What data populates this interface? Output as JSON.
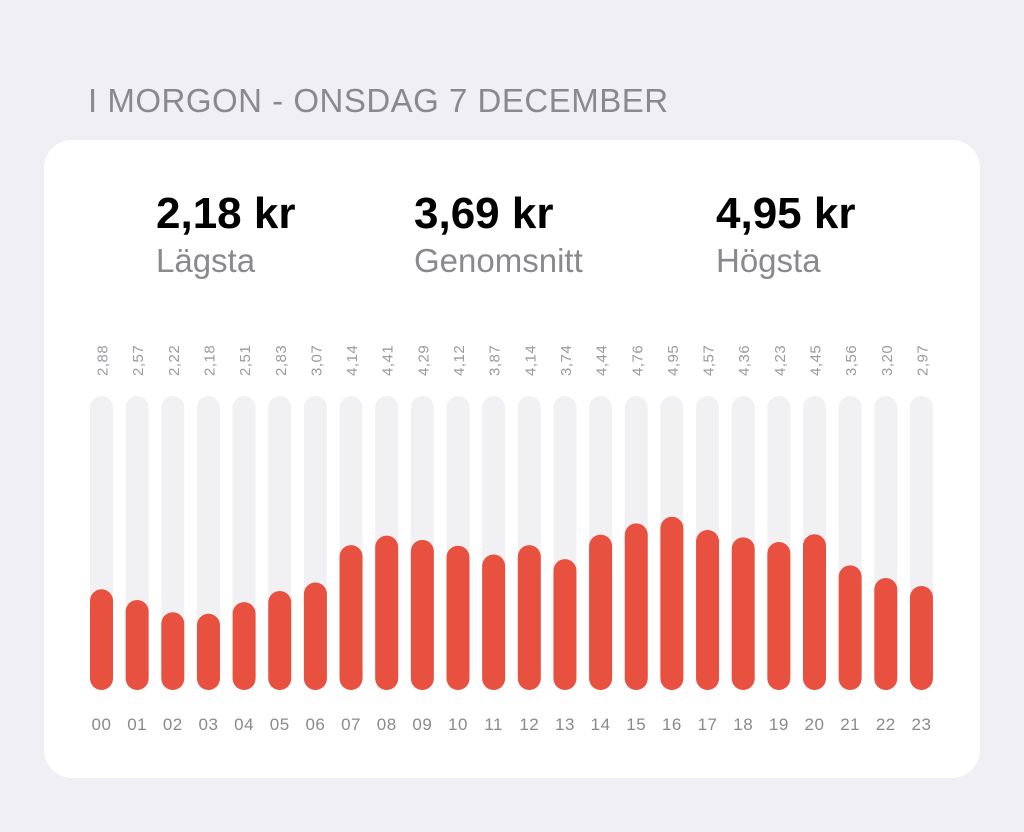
{
  "header": {
    "title": "I MORGON - ONSDAG 7 DECEMBER"
  },
  "stats": {
    "min": {
      "value": "2,18 kr",
      "label": "Lägsta"
    },
    "avg": {
      "value": "3,69 kr",
      "label": "Genomsnitt"
    },
    "max": {
      "value": "4,95 kr",
      "label": "Högsta"
    }
  },
  "colors": {
    "bar": "#e8503f",
    "track": "#f1f1f3",
    "value_label": "#9a9aa0",
    "hour_label": "#8a8a8e"
  },
  "chart_data": {
    "type": "bar",
    "categories": [
      "00",
      "01",
      "02",
      "03",
      "04",
      "05",
      "06",
      "07",
      "08",
      "09",
      "10",
      "11",
      "12",
      "13",
      "14",
      "15",
      "16",
      "17",
      "18",
      "19",
      "20",
      "21",
      "22",
      "23"
    ],
    "values": [
      2.88,
      2.57,
      2.22,
      2.18,
      2.51,
      2.83,
      3.07,
      4.14,
      4.41,
      4.29,
      4.12,
      3.87,
      4.14,
      3.74,
      4.44,
      4.76,
      4.95,
      4.57,
      4.36,
      4.23,
      4.45,
      3.56,
      3.2,
      2.97
    ],
    "value_labels": [
      "2,88",
      "2,57",
      "2,22",
      "2,18",
      "2,51",
      "2,83",
      "3,07",
      "4,14",
      "4,41",
      "4,29",
      "4,12",
      "3,87",
      "4,14",
      "3,74",
      "4,44",
      "4,76",
      "4,95",
      "4,57",
      "4,36",
      "4,23",
      "4,45",
      "3,56",
      "3,20",
      "2,97"
    ],
    "title": "",
    "xlabel": "",
    "ylabel": "",
    "ylim": [
      0,
      8.4
    ],
    "grid": false
  }
}
